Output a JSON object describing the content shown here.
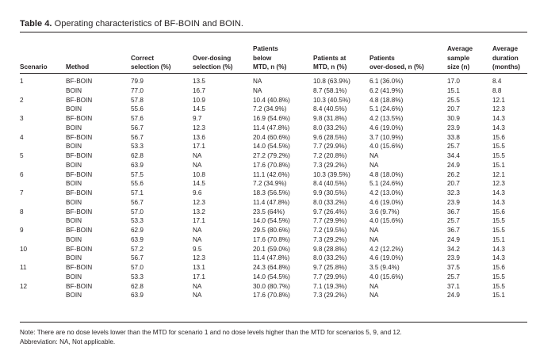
{
  "table": {
    "label": "Table 4.",
    "caption": "Operating characteristics of BF-BOIN and BOIN.",
    "headers": [
      [
        "Scenario"
      ],
      [
        "Method"
      ],
      [
        "Correct",
        "selection (%)"
      ],
      [
        "Over-dosing",
        "selection (%)"
      ],
      [
        "Patients",
        "below",
        "MTD, n (%)"
      ],
      [
        "Patients at",
        "MTD, n (%)"
      ],
      [
        "Patients",
        "over-dosed, n (%)"
      ],
      [
        "Average",
        "sample",
        "size (n)"
      ],
      [
        "Average",
        "duration",
        "(months)"
      ]
    ],
    "rows": [
      [
        "1",
        "BF-BOIN",
        "79.9",
        "13.5",
        "NA",
        "10.8 (63.9%)",
        "6.1 (36.0%)",
        "17.0",
        "8.4"
      ],
      [
        "",
        "BOIN",
        "77.0",
        "16.7",
        "NA",
        "8.7 (58.1%)",
        "6.2 (41.9%)",
        "15.1",
        "8.8"
      ],
      [
        "2",
        "BF-BOIN",
        "57.8",
        "10.9",
        "10.4 (40.8%)",
        "10.3 (40.5%)",
        "4.8 (18.8%)",
        "25.5",
        "12.1"
      ],
      [
        "",
        "BOIN",
        "55.6",
        "14.5",
        "7.2 (34.9%)",
        "8.4 (40.5%)",
        "5.1 (24.6%)",
        "20.7",
        "12.3"
      ],
      [
        "3",
        "BF-BOIN",
        "57.6",
        "9.7",
        "16.9 (54.6%)",
        "9.8 (31.8%)",
        "4.2 (13.5%)",
        "30.9",
        "14.3"
      ],
      [
        "",
        "BOIN",
        "56.7",
        "12.3",
        "11.4 (47.8%)",
        "8.0 (33.2%)",
        "4.6 (19.0%)",
        "23.9",
        "14.3"
      ],
      [
        "4",
        "BF-BOIN",
        "56.7",
        "13.6",
        "20.4 (60.6%)",
        "9.6 (28.5%)",
        "3.7 (10.9%)",
        "33.8",
        "15.6"
      ],
      [
        "",
        "BOIN",
        "53.3",
        "17.1",
        "14.0 (54.5%)",
        "7.7 (29.9%)",
        "4.0 (15.6%)",
        "25.7",
        "15.5"
      ],
      [
        "5",
        "BF-BOIN",
        "62.8",
        "NA",
        "27.2 (79.2%)",
        "7.2 (20.8%)",
        "NA",
        "34.4",
        "15.5"
      ],
      [
        "",
        "BOIN",
        "63.9",
        "NA",
        "17.6 (70.8%)",
        "7.3 (29.2%)",
        "NA",
        "24.9",
        "15.1"
      ],
      [
        "6",
        "BF-BOIN",
        "57.5",
        "10.8",
        "11.1 (42.6%)",
        "10.3 (39.5%)",
        "4.8 (18.0%)",
        "26.2",
        "12.1"
      ],
      [
        "",
        "BOIN",
        "55.6",
        "14.5",
        "7.2 (34.9%)",
        "8.4 (40.5%)",
        "5.1 (24.6%)",
        "20.7",
        "12.3"
      ],
      [
        "7",
        "BF-BOIN",
        "57.1",
        "9.6",
        "18.3 (56.5%)",
        "9.9 (30.5%)",
        "4.2 (13.0%)",
        "32.3",
        "14.3"
      ],
      [
        "",
        "BOIN",
        "56.7",
        "12.3",
        "11.4 (47.8%)",
        "8.0 (33.2%)",
        "4.6 (19.0%)",
        "23.9",
        "14.3"
      ],
      [
        "8",
        "BF-BOIN",
        "57.0",
        "13.2",
        "23.5 (64%)",
        "9.7 (26.4%)",
        "3.6 (9.7%)",
        "36.7",
        "15.6"
      ],
      [
        "",
        "BOIN",
        "53.3",
        "17.1",
        "14.0 (54.5%)",
        "7.7 (29.9%)",
        "4.0 (15.6%)",
        "25.7",
        "15.5"
      ],
      [
        "9",
        "BF-BOIN",
        "62.9",
        "NA",
        "29.5 (80.6%)",
        "7.2 (19.5%)",
        "NA",
        "36.7",
        "15.5"
      ],
      [
        "",
        "BOIN",
        "63.9",
        "NA",
        "17.6 (70.8%)",
        "7.3 (29.2%)",
        "NA",
        "24.9",
        "15.1"
      ],
      [
        "10",
        "BF-BOIN",
        "57.2",
        "9.5",
        "20.1 (59.0%)",
        "9.8 (28.8%)",
        "4.2 (12.2%)",
        "34.2",
        "14.3"
      ],
      [
        "",
        "BOIN",
        "56.7",
        "12.3",
        "11.4 (47.8%)",
        "8.0 (33.2%)",
        "4.6 (19.0%)",
        "23.9",
        "14.3"
      ],
      [
        "11",
        "BF-BOIN",
        "57.0",
        "13.1",
        "24.3 (64.8%)",
        "9.7 (25.8%)",
        "3.5 (9.4%)",
        "37.5",
        "15.6"
      ],
      [
        "",
        "BOIN",
        "53.3",
        "17.1",
        "14.0 (54.5%)",
        "7.7 (29.9%)",
        "4.0 (15.6%)",
        "25.7",
        "15.5"
      ],
      [
        "12",
        "BF-BOIN",
        "62.8",
        "NA",
        "30.0 (80.7%)",
        "7.1 (19.3%)",
        "NA",
        "37.1",
        "15.5"
      ],
      [
        "",
        "BOIN",
        "63.9",
        "NA",
        "17.6 (70.8%)",
        "7.3 (29.2%)",
        "NA",
        "24.9",
        "15.1"
      ]
    ]
  },
  "notes": {
    "note": "Note: There are no dose levels lower than the MTD for scenario 1 and no dose levels higher than the MTD for scenarios 5, 9, and 12.",
    "abbreviation": "Abbreviation: NA, Not applicable."
  }
}
